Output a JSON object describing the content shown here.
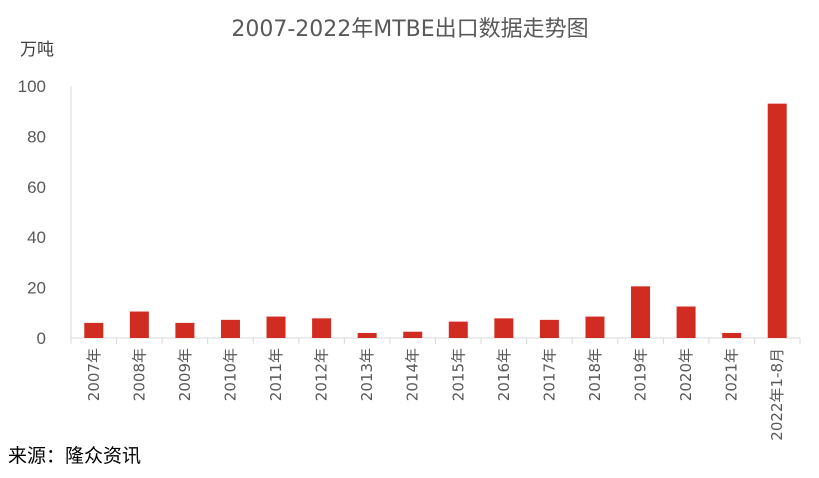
{
  "chart_data": {
    "type": "bar",
    "title": "2007-2022年MTBE出口数据走势图",
    "unit_label": "万吨",
    "xlabel": "",
    "ylabel": "万吨",
    "ylim": [
      0,
      100
    ],
    "yticks": [
      "0",
      "20",
      "40",
      "60",
      "80",
      "100"
    ],
    "grid": false,
    "legend": "none",
    "categories": [
      "2007年",
      "2008年",
      "2009年",
      "2010年",
      "2011年",
      "2012年",
      "2013年",
      "2014年",
      "2015年",
      "2016年",
      "2017年",
      "2018年",
      "2019年",
      "2020年",
      "2021年",
      "2022年1-8月"
    ],
    "values": [
      6,
      10.5,
      6,
      7.2,
      8.5,
      7.8,
      2,
      2.5,
      6.5,
      7.8,
      7.2,
      8.5,
      20.5,
      12.5,
      2,
      93
    ],
    "bar_color": "#d02c22"
  },
  "source": "来源：隆众资讯"
}
